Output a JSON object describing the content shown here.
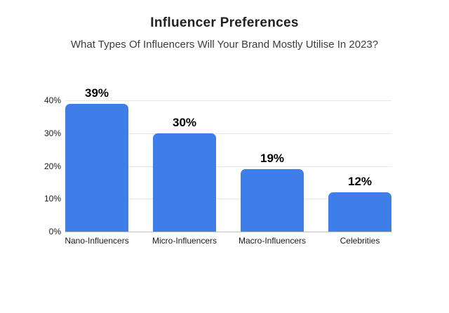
{
  "header": {
    "title": "Influencer Preferences",
    "subtitle": "What Types Of Influencers Will Your Brand Mostly Utilise In 2023?"
  },
  "chart_data": {
    "type": "bar",
    "title": "Influencer Preferences",
    "subtitle": "What Types Of Influencers Will Your Brand Mostly Utilise In 2023?",
    "categories": [
      "Nano-Influencers",
      "Micro-Influencers",
      "Macro-Influencers",
      "Celebrities"
    ],
    "values": [
      39,
      30,
      19,
      12
    ],
    "value_labels": [
      "39%",
      "30%",
      "19%",
      "12%"
    ],
    "yticks": [
      "40%",
      "30%",
      "20%",
      "10%",
      "0%"
    ],
    "ylim": [
      0,
      40
    ],
    "xlabel": "",
    "ylabel": "",
    "grid": true,
    "legend": "none",
    "colors": {
      "bar": "#3d7ee8",
      "gridline": "#e6e6e6",
      "baseline": "#c2c2c2",
      "title": "#212121",
      "subtitle": "#3c3c3c",
      "tick_label": "#1a1a1a",
      "value_label": "#000000",
      "background": "#ffffff"
    }
  }
}
